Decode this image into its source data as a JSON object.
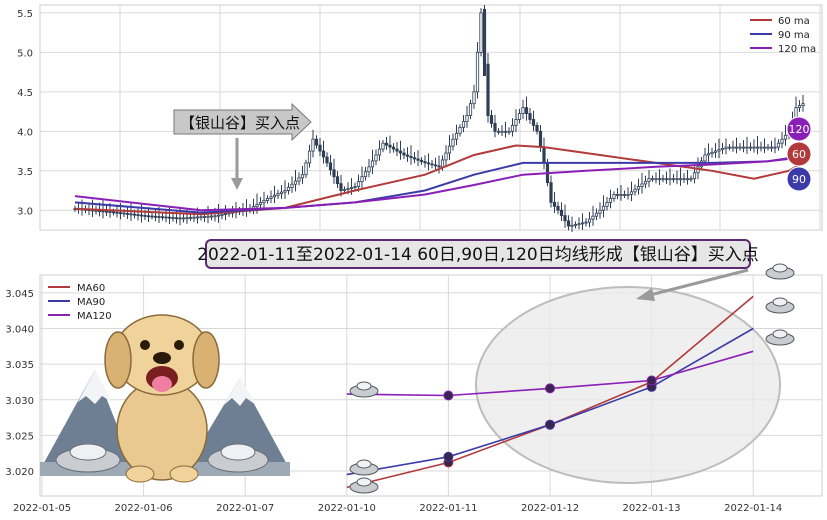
{
  "banner": "2022-01-11至2022-01-14 60日,90日,120日均线形成【银山谷】买入点",
  "callout": "【银山谷】买入点",
  "colors": {
    "ma60": "#b23a3a",
    "ma90": "#3b3ba8",
    "ma120": "#8a1fb5",
    "candle": "#2f3e55",
    "grid": "#d9d9d9"
  },
  "chart_data": [
    {
      "type": "candlestick",
      "title": "",
      "ylim": [
        2.75,
        5.6
      ],
      "yticks": [
        3.0,
        3.5,
        4.0,
        4.5,
        5.0,
        5.5
      ],
      "grid": true,
      "legend": {
        "position": "top-right",
        "entries": [
          "60 ma",
          "90 ma",
          "120 ma"
        ]
      },
      "close_path": [
        [
          0,
          3.02
        ],
        [
          10,
          2.98
        ],
        [
          20,
          2.93
        ],
        [
          30,
          2.9
        ],
        [
          40,
          2.93
        ],
        [
          50,
          3.02
        ],
        [
          55,
          3.15
        ],
        [
          60,
          3.25
        ],
        [
          65,
          3.45
        ],
        [
          68,
          3.9
        ],
        [
          72,
          3.6
        ],
        [
          76,
          3.25
        ],
        [
          80,
          3.3
        ],
        [
          84,
          3.55
        ],
        [
          88,
          3.85
        ],
        [
          94,
          3.7
        ],
        [
          100,
          3.6
        ],
        [
          104,
          3.55
        ],
        [
          108,
          3.9
        ],
        [
          112,
          4.2
        ],
        [
          114,
          4.5
        ],
        [
          116,
          5.5
        ],
        [
          118,
          4.2
        ],
        [
          120,
          4.0
        ],
        [
          124,
          4.0
        ],
        [
          128,
          4.3
        ],
        [
          132,
          4.0
        ],
        [
          134,
          3.6
        ],
        [
          136,
          3.1
        ],
        [
          138,
          3.0
        ],
        [
          141,
          2.8
        ],
        [
          146,
          2.85
        ],
        [
          150,
          3.0
        ],
        [
          154,
          3.2
        ],
        [
          158,
          3.2
        ],
        [
          164,
          3.4
        ],
        [
          170,
          3.4
        ],
        [
          176,
          3.4
        ],
        [
          180,
          3.7
        ],
        [
          186,
          3.8
        ],
        [
          190,
          3.8
        ],
        [
          196,
          3.8
        ],
        [
          200,
          3.8
        ],
        [
          204,
          4.0
        ],
        [
          206,
          4.3
        ],
        [
          208,
          4.35
        ]
      ],
      "highlights": [
        {
          "x": 117,
          "value": 5.55,
          "note": "spike"
        }
      ],
      "ma60": [
        [
          0,
          3.02
        ],
        [
          36,
          2.95
        ],
        [
          60,
          3.03
        ],
        [
          80,
          3.25
        ],
        [
          100,
          3.45
        ],
        [
          114,
          3.7
        ],
        [
          126,
          3.82
        ],
        [
          134,
          3.8
        ],
        [
          150,
          3.7
        ],
        [
          166,
          3.6
        ],
        [
          182,
          3.5
        ],
        [
          194,
          3.4
        ],
        [
          204,
          3.5
        ],
        [
          210,
          3.65
        ]
      ],
      "ma90": [
        [
          0,
          3.1
        ],
        [
          36,
          2.97
        ],
        [
          60,
          3.03
        ],
        [
          80,
          3.1
        ],
        [
          100,
          3.25
        ],
        [
          114,
          3.45
        ],
        [
          128,
          3.6
        ],
        [
          146,
          3.6
        ],
        [
          166,
          3.6
        ],
        [
          182,
          3.6
        ],
        [
          198,
          3.62
        ],
        [
          210,
          3.7
        ]
      ],
      "ma120": [
        [
          0,
          3.18
        ],
        [
          36,
          3.0
        ],
        [
          60,
          3.03
        ],
        [
          80,
          3.1
        ],
        [
          100,
          3.2
        ],
        [
          114,
          3.32
        ],
        [
          128,
          3.45
        ],
        [
          146,
          3.5
        ],
        [
          166,
          3.55
        ],
        [
          182,
          3.58
        ],
        [
          198,
          3.62
        ],
        [
          210,
          3.68
        ]
      ],
      "badges": [
        "120",
        "60",
        "90"
      ]
    },
    {
      "type": "line",
      "title": "",
      "xlabel": "",
      "ylabel": "",
      "categories": [
        "2022-01-05",
        "2022-01-06",
        "2022-01-07",
        "2022-01-10",
        "2022-01-11",
        "2022-01-12",
        "2022-01-13",
        "2022-01-14"
      ],
      "ylim": [
        3.0165,
        3.0475
      ],
      "yticks": [
        3.02,
        3.025,
        3.03,
        3.035,
        3.04,
        3.045
      ],
      "grid": true,
      "legend": {
        "position": "top-left"
      },
      "series": [
        {
          "name": "MA60",
          "x": [
            3,
            4,
            5,
            6,
            7
          ],
          "values": [
            3.0177,
            3.0212,
            3.0265,
            3.0325,
            3.0445
          ]
        },
        {
          "name": "MA90",
          "x": [
            3,
            4,
            5,
            6,
            7
          ],
          "values": [
            3.0195,
            3.022,
            3.0265,
            3.0318,
            3.04
          ]
        },
        {
          "name": "MA120",
          "x": [
            3,
            4,
            5,
            6,
            7
          ],
          "values": [
            3.0308,
            3.0306,
            3.0316,
            3.0327,
            3.0368
          ]
        }
      ],
      "markers_at": [
        4,
        5,
        6
      ]
    }
  ]
}
